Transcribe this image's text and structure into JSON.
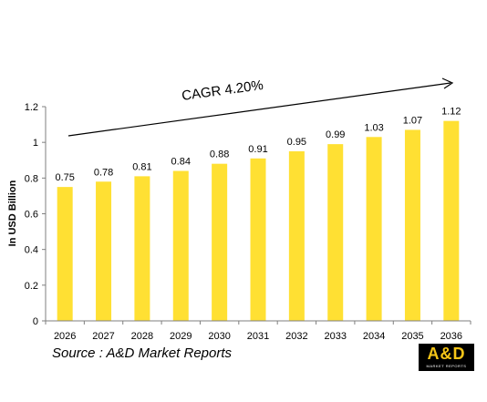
{
  "chart_data": {
    "type": "bar",
    "categories": [
      "2026",
      "2027",
      "2028",
      "2029",
      "2030",
      "2031",
      "2032",
      "2033",
      "2034",
      "2035",
      "2036"
    ],
    "values": [
      0.75,
      0.78,
      0.81,
      0.84,
      0.88,
      0.91,
      0.95,
      0.99,
      1.03,
      1.07,
      1.12
    ],
    "value_labels": [
      "0.75",
      "0.78",
      "0.81",
      "0.84",
      "0.88",
      "0.91",
      "0.95",
      "0.99",
      "1.03",
      "1.07",
      "1.12"
    ],
    "ylabel": "In USD Billion",
    "ylim": [
      0,
      1.2
    ],
    "yticks": [
      0,
      0.2,
      0.4,
      0.6,
      0.8,
      1,
      1.2
    ],
    "ytick_labels": [
      "0",
      "0.2",
      "0.4",
      "0.6",
      "0.8",
      "1",
      "1.2"
    ],
    "grid": false,
    "bar_color": "#FFE033",
    "annotation": "CAGR 4.20%"
  },
  "footer": {
    "source": "Source : A&D Market Reports",
    "logo_text": "A&D",
    "logo_subtext": "MARKET REPORTS"
  },
  "colors": {
    "bar": "#FFE033",
    "logo_bg": "#000000",
    "logo_text": "#F5C518"
  }
}
